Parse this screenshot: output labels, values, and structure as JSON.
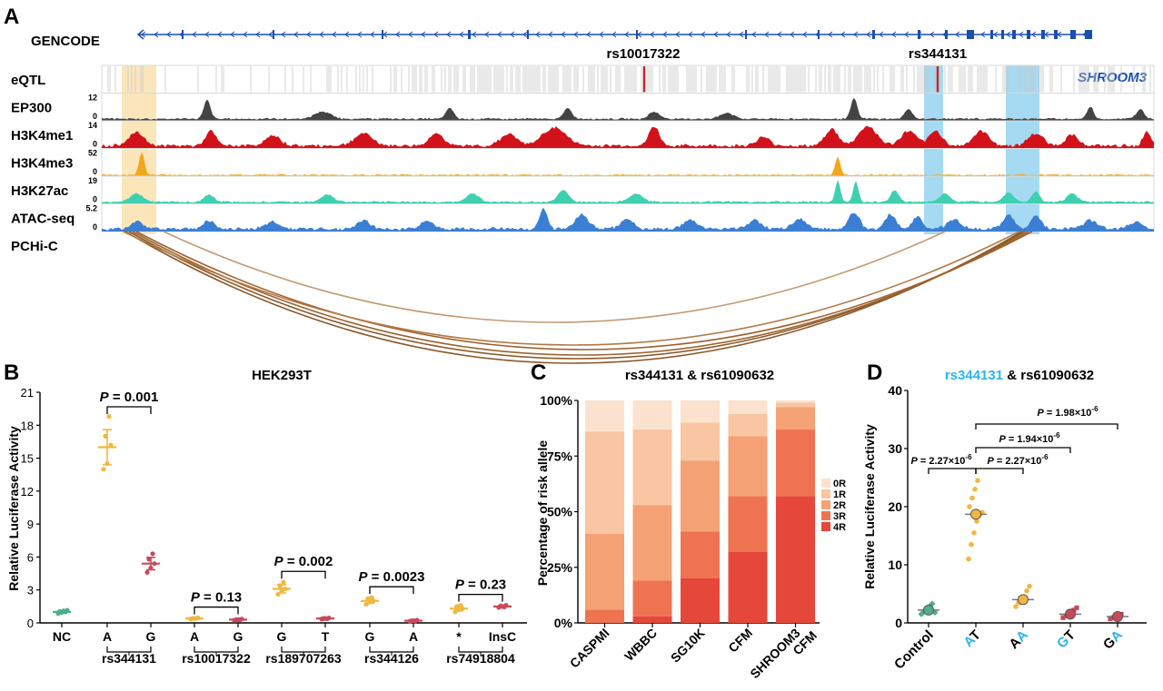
{
  "panels": {
    "a": "A",
    "b": "B",
    "c": "C",
    "d": "D"
  },
  "genome": {
    "gencode_label": "GENCODE",
    "gene_name": "SHROOM3",
    "snp1": "rs10017322",
    "snp2": "rs344131",
    "tracks": [
      {
        "key": "eqtl",
        "label": "eQTL",
        "max": "",
        "min": "",
        "color": "#888888"
      },
      {
        "key": "ep300",
        "label": "EP300",
        "max": "12",
        "min": "0",
        "color": "#444444"
      },
      {
        "key": "h3k4me1",
        "label": "H3K4me1",
        "max": "14",
        "min": "0",
        "color": "#d2121a"
      },
      {
        "key": "h3k4me3",
        "label": "H3K4me3",
        "max": "52",
        "min": "0",
        "color": "#f2a71d"
      },
      {
        "key": "h3k27ac",
        "label": "H3K27ac",
        "max": "19",
        "min": "0",
        "color": "#3fd0b0"
      },
      {
        "key": "atac",
        "label": "ATAC-seq",
        "max": "5.2",
        "min": "0",
        "color": "#3b7fd4"
      },
      {
        "key": "pchic",
        "label": "PCHi-C",
        "max": "",
        "min": "",
        "color": "#a0602a"
      }
    ]
  },
  "chart_data": [
    {
      "panel": "B",
      "type": "scatter",
      "title": "HEK293T",
      "ylabel": "Relative Luciferase Activity",
      "ylim": [
        0,
        21
      ],
      "yticks": [
        "0",
        "3",
        "6",
        "9",
        "12",
        "15",
        "18",
        "21"
      ],
      "groups": [
        {
          "snp": "",
          "alleles": [
            {
              "label": "NC",
              "mean": 1.0,
              "points": [
                0.85,
                0.95,
                1.0,
                1.05,
                1.1,
                1.15
              ],
              "color": "#4fae8c"
            }
          ]
        },
        {
          "snp": "rs344131",
          "pvalue": "0.001",
          "alleles": [
            {
              "label": "A",
              "mean": 16.0,
              "points": [
                14.0,
                14.5,
                16.2,
                17.0,
                18.8
              ],
              "color": "#f0b840"
            },
            {
              "label": "G",
              "mean": 5.4,
              "points": [
                4.6,
                5.0,
                5.4,
                5.8,
                6.3
              ],
              "color": "#c84a5a"
            }
          ]
        },
        {
          "snp": "rs10017322",
          "pvalue": "0.13",
          "alleles": [
            {
              "label": "A",
              "mean": 0.4,
              "points": [
                0.35,
                0.4,
                0.45,
                0.4,
                0.42
              ],
              "color": "#f0b840"
            },
            {
              "label": "G",
              "mean": 0.3,
              "points": [
                0.25,
                0.3,
                0.35,
                0.3,
                0.28
              ],
              "color": "#c84a5a"
            }
          ]
        },
        {
          "snp": "rs189707263",
          "pvalue": "0.002",
          "alleles": [
            {
              "label": "G",
              "mean": 3.1,
              "points": [
                2.6,
                2.9,
                3.1,
                3.4,
                3.7
              ],
              "color": "#f0b840"
            },
            {
              "label": "T",
              "mean": 0.4,
              "points": [
                0.35,
                0.4,
                0.45,
                0.4,
                0.38
              ],
              "color": "#c84a5a"
            }
          ]
        },
        {
          "snp": "rs344126",
          "pvalue": "0.0023",
          "alleles": [
            {
              "label": "G",
              "mean": 2.0,
              "points": [
                1.7,
                1.9,
                2.0,
                2.2,
                2.3
              ],
              "color": "#f0b840"
            },
            {
              "label": "A",
              "mean": 0.2,
              "points": [
                0.15,
                0.2,
                0.25,
                0.2,
                0.18
              ],
              "color": "#c84a5a"
            }
          ]
        },
        {
          "snp": "rs74918804",
          "pvalue": "0.23",
          "alleles": [
            {
              "label": "*",
              "mean": 1.3,
              "points": [
                1.0,
                1.2,
                1.3,
                1.5,
                1.6
              ],
              "color": "#f0b840"
            },
            {
              "label": "InsC",
              "mean": 1.5,
              "points": [
                1.4,
                1.5,
                1.6,
                1.55,
                1.45
              ],
              "color": "#c84a5a"
            }
          ]
        }
      ]
    },
    {
      "panel": "C",
      "type": "bar",
      "stacked": true,
      "title": "rs344131 & rs61090632",
      "ylabel": "Percentage of risk allele",
      "ylim": [
        0,
        100
      ],
      "yticks": [
        "0%",
        "25%",
        "50%",
        "75%",
        "100%"
      ],
      "categories": [
        "CASPMI",
        "WBBC",
        "SG10K",
        "CFM",
        "SHROOM3 CFM"
      ],
      "legend_position": "right",
      "series": [
        {
          "name": "4R",
          "color": "#e5473a",
          "values": [
            0,
            3,
            20,
            32,
            57
          ]
        },
        {
          "name": "3R",
          "color": "#ee7451",
          "values": [
            6,
            16,
            21,
            25,
            30
          ]
        },
        {
          "name": "2R",
          "color": "#f4a275",
          "values": [
            34,
            34,
            32,
            27,
            10
          ]
        },
        {
          "name": "1R",
          "color": "#f8c6a2",
          "values": [
            46,
            34,
            17,
            10,
            2
          ]
        },
        {
          "name": "0R",
          "color": "#fbe2cf",
          "values": [
            14,
            13,
            10,
            6,
            1
          ]
        }
      ]
    },
    {
      "panel": "D",
      "type": "scatter",
      "title_part1": "rs344131",
      "title_part2": " & rs61090632",
      "ylabel": "Relative Luciferase Activity",
      "ylim": [
        0,
        40
      ],
      "yticks": [
        "0",
        "10",
        "20",
        "30",
        "40"
      ],
      "categories": [
        {
          "label1": "Control",
          "label2": "",
          "color1": "#000000",
          "color2": "#000000",
          "mean": 2.2,
          "dot": "#4fae8c",
          "points": [
            1.5,
            2.0,
            2.3,
            2.8,
            3.3,
            1.8
          ]
        },
        {
          "label1": "A",
          "label2": "T",
          "color1": "#29b5e8",
          "color2": "#000000",
          "mean": 18.7,
          "dot": "#f0b840",
          "points": [
            11.0,
            13.5,
            15.5,
            17.5,
            18.5,
            19.0,
            20.0,
            21.5,
            23.0,
            24.5
          ]
        },
        {
          "label1": "A",
          "label2": "A",
          "color1": "#000000",
          "color2": "#29b5e8",
          "mean": 4.0,
          "dot": "#f0b840",
          "points": [
            2.8,
            3.5,
            4.0,
            4.5,
            5.5,
            6.3
          ]
        },
        {
          "label1": "G",
          "label2": "T",
          "color1": "#29b5e8",
          "color2": "#000000",
          "mean": 1.5,
          "dot": "#c84a5a",
          "points": [
            0.9,
            1.2,
            1.5,
            1.8,
            2.2,
            2.6
          ]
        },
        {
          "label1": "G",
          "label2": "A",
          "color1": "#000000",
          "color2": "#29b5e8",
          "mean": 1.1,
          "dot": "#c84a5a",
          "points": [
            0.7,
            0.9,
            1.1,
            1.3,
            1.5
          ]
        }
      ],
      "comparisons": [
        {
          "from": 0,
          "to": 1,
          "p": "2.27×10",
          "exp": "-6"
        },
        {
          "from": 1,
          "to": 2,
          "p": "2.27×10",
          "exp": "-6"
        },
        {
          "from": 1,
          "to": 3,
          "p": "1.94×10",
          "exp": "-6"
        },
        {
          "from": 1,
          "to": 4,
          "p": "1.98×10",
          "exp": "-6"
        }
      ]
    }
  ]
}
